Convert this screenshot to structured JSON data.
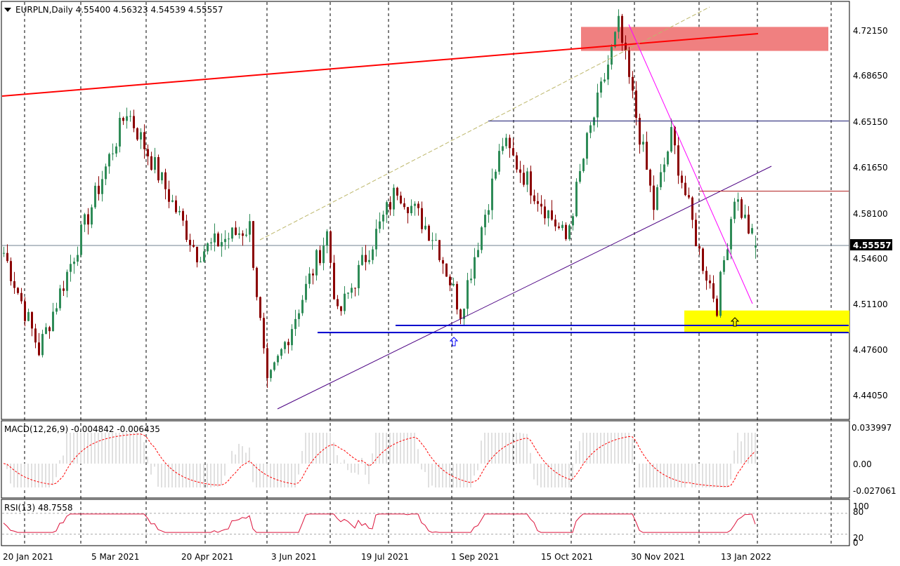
{
  "header": {
    "symbol_line": "EURPLN,Daily  4.55400 4.56323 4.54539 4.55557",
    "macd_label": "MACD(12,26,9) -0.004842 -0.006435",
    "rsi_label": "RSI(13) 48.7558"
  },
  "current_price": "4.55557",
  "price_axis_labels": [
    "4.72150",
    "4.68650",
    "4.65150",
    "4.61650",
    "4.58100",
    "4.54600",
    "4.51100",
    "4.47600",
    "4.44050"
  ],
  "macd_axis_labels": [
    "0.033997",
    "0.00",
    "-0.027061"
  ],
  "rsi_axis_labels": [
    "100",
    "80",
    "20",
    "0"
  ],
  "date_labels": [
    "20 Jan 2021",
    "5 Mar 2021",
    "20 Apr 2021",
    "3 Jun 2021",
    "19 Jul 2021",
    "1 Sep 2021",
    "15 Oct 2021",
    "30 Nov 2021",
    "13 Jan 2022"
  ],
  "colors": {
    "bull_candle": "#2e8b57",
    "bear_candle": "#8b0000",
    "supply_zone": "#f08080",
    "demand_zone": "#ffff00",
    "long_trendline": "#ff0000",
    "rising_trendline": "#4b0082",
    "falling_trendline": "#ff00ff",
    "support_lines": "#0000cd",
    "macd_hist": "#c0c0c0",
    "macd_signal": "#ff0000",
    "rsi_line": "#dc143c"
  },
  "chart_data": {
    "type": "candlestick",
    "symbol": "EURPLN",
    "timeframe": "Daily",
    "last_bar": {
      "open": 4.554,
      "high": 4.56323,
      "low": 4.54539,
      "close": 4.55557
    },
    "price_ylim": [
      4.43,
      4.7285
    ],
    "key_points": [
      {
        "date": "Jan 2021",
        "price": 4.55
      },
      {
        "date": "Feb 2021",
        "price": 4.475
      },
      {
        "date": "Mar 2021",
        "price": 4.66
      },
      {
        "date": "Apr 2021",
        "price": 4.55
      },
      {
        "date": "May 2021",
        "price": 4.57
      },
      {
        "date": "Jun 2021",
        "price": 4.445
      },
      {
        "date": "Jun 2021",
        "price": 4.565
      },
      {
        "date": "Jul 2021",
        "price": 4.5
      },
      {
        "date": "Jul 2021",
        "price": 4.6
      },
      {
        "date": "Aug 2021",
        "price": 4.56
      },
      {
        "date": "Sep 2021",
        "price": 4.505
      },
      {
        "date": "Sep 2021",
        "price": 4.635
      },
      {
        "date": "Oct 2021",
        "price": 4.56
      },
      {
        "date": "Oct 2021",
        "price": 4.635
      },
      {
        "date": "Nov 2021",
        "price": 4.725
      },
      {
        "date": "Nov 2021",
        "price": 4.585
      },
      {
        "date": "Dec 2021",
        "price": 4.64
      },
      {
        "date": "Dec 2021",
        "price": 4.55
      },
      {
        "date": "Jan 2022",
        "price": 4.51
      },
      {
        "date": "Jan 2022",
        "price": 4.595
      },
      {
        "date": "Jan 2022",
        "price": 4.555
      }
    ],
    "levels": [
      {
        "name": "resistance",
        "price": 4.6515
      },
      {
        "name": "resistance",
        "price": 4.5975
      },
      {
        "name": "support",
        "price": 4.494
      },
      {
        "name": "support",
        "price": 4.4885
      }
    ],
    "zones": [
      {
        "name": "supply",
        "price_from": 4.7055,
        "price_to": 4.724
      },
      {
        "name": "demand",
        "price_from": 4.4885,
        "price_to": 4.5055
      }
    ],
    "macd": {
      "params": "12,26,9",
      "main": -0.004842,
      "signal": -0.006435,
      "ylim": [
        -0.027061,
        0.033997
      ]
    },
    "rsi": {
      "period": 13,
      "value": 48.7558,
      "levels": [
        20,
        80
      ],
      "ylim": [
        0,
        100
      ]
    }
  }
}
